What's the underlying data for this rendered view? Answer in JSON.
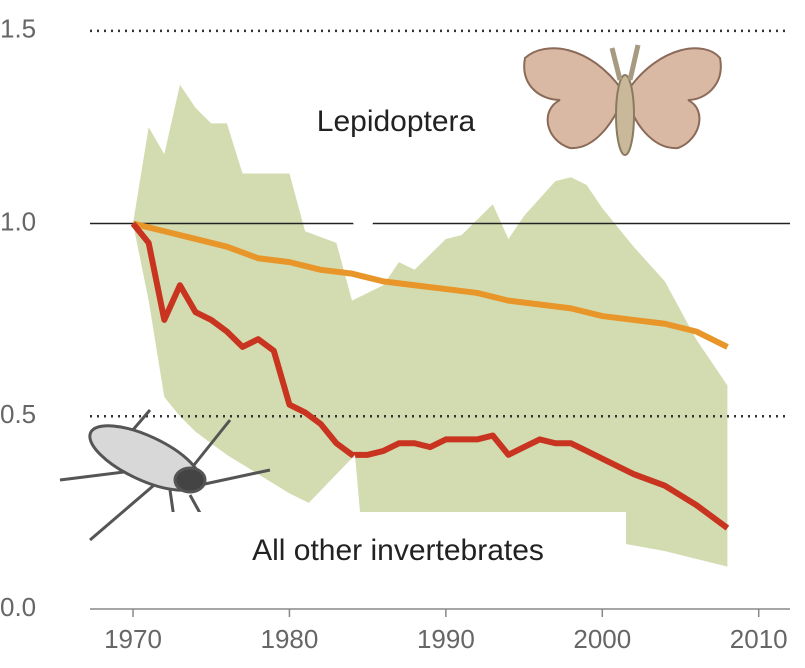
{
  "chart_data": {
    "type": "line",
    "xlim": [
      1967.25,
      2012
    ],
    "ylim": [
      0,
      1.58
    ],
    "xticks": [
      1970,
      1980,
      1990,
      2000,
      2010
    ],
    "yticks": [
      {
        "value": 0,
        "label": "0.0"
      },
      {
        "value": 0.5,
        "label": "0.5"
      },
      {
        "value": 1,
        "label": "1.0"
      },
      {
        "value": 1.5,
        "label": "1.5"
      }
    ],
    "reference_line": 1,
    "band_color": "#d3dcb0",
    "band_upper": {
      "x": [
        1970,
        1971,
        1972,
        1973,
        1974,
        1975,
        1976,
        1977,
        1980,
        1981,
        1983,
        1984,
        1985,
        1986,
        1987,
        1988,
        1989,
        1990,
        1991,
        1993,
        1994,
        1995,
        1997,
        1998,
        1999,
        2000,
        2002,
        2004,
        2006,
        2008
      ],
      "values": [
        1.0,
        1.25,
        1.18,
        1.36,
        1.3,
        1.26,
        1.26,
        1.13,
        1.13,
        0.98,
        0.95,
        0.8,
        0.82,
        0.84,
        0.9,
        0.88,
        0.92,
        0.96,
        0.97,
        1.05,
        0.96,
        1.02,
        1.11,
        1.12,
        1.1,
        1.04,
        0.94,
        0.85,
        0.7,
        0.58
      ]
    },
    "band_lower": {
      "x": [
        1970,
        1971,
        1972,
        1973,
        1974,
        1976,
        1978,
        1980,
        1982,
        1984,
        1986,
        1990,
        1994,
        2000,
        2004,
        2008
      ],
      "values": [
        1.0,
        0.8,
        0.55,
        0.5,
        0.46,
        0.4,
        0.35,
        0.3,
        0.26,
        0.25,
        0.24,
        0.23,
        0.22,
        0.18,
        0.15,
        0.11
      ]
    },
    "series": [
      {
        "name": "Lepidoptera",
        "color": "#e8962a",
        "x": [
          1970,
          1972,
          1974,
          1976,
          1978,
          1980,
          1982,
          1984,
          1986,
          1988,
          1990,
          1992,
          1994,
          1996,
          1998,
          2000,
          2002,
          2004,
          2006,
          2008
        ],
        "values": [
          1.0,
          0.98,
          0.96,
          0.94,
          0.91,
          0.9,
          0.88,
          0.87,
          0.85,
          0.84,
          0.83,
          0.82,
          0.8,
          0.79,
          0.78,
          0.76,
          0.75,
          0.74,
          0.72,
          0.68
        ]
      },
      {
        "name": "All other invertebrates",
        "color": "#c8341f",
        "x": [
          1970,
          1971,
          1972,
          1973,
          1974,
          1975,
          1976,
          1977,
          1978,
          1979,
          1980,
          1981,
          1982,
          1983,
          1984,
          1985,
          1986,
          1987,
          1988,
          1989,
          1990,
          1991,
          1992,
          1993,
          1994,
          1995,
          1996,
          1997,
          1998,
          1999,
          2000,
          2002,
          2004,
          2006,
          2008
        ],
        "values": [
          1.0,
          0.95,
          0.75,
          0.84,
          0.77,
          0.75,
          0.72,
          0.68,
          0.7,
          0.67,
          0.53,
          0.51,
          0.48,
          0.43,
          0.4,
          0.4,
          0.41,
          0.43,
          0.43,
          0.42,
          0.44,
          0.44,
          0.44,
          0.45,
          0.4,
          0.42,
          0.44,
          0.43,
          0.43,
          0.41,
          0.39,
          0.35,
          0.32,
          0.27,
          0.21
        ]
      }
    ]
  }
}
